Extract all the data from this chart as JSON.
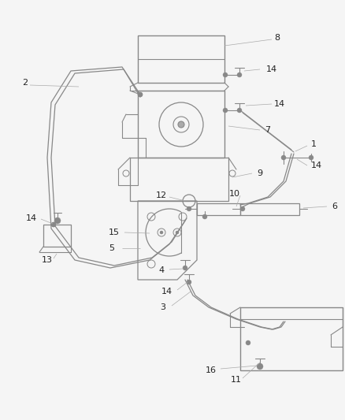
{
  "bg_color": "#f5f5f5",
  "line_color": "#888888",
  "label_color": "#222222",
  "fig_width": 4.38,
  "fig_height": 5.33,
  "dpi": 100
}
